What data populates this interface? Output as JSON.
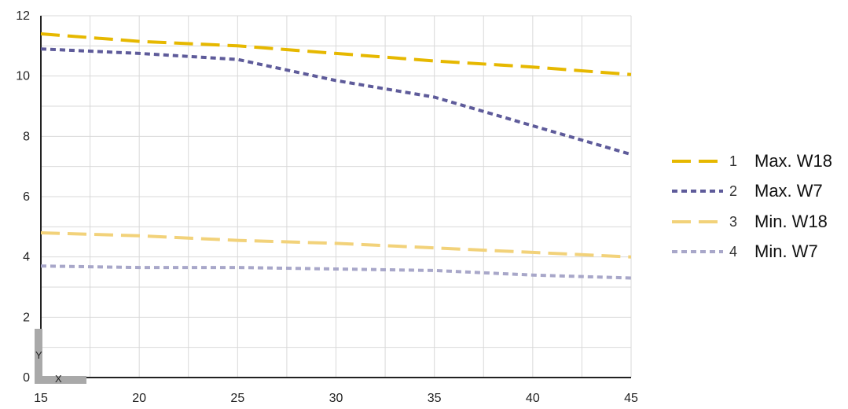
{
  "chart_data": {
    "type": "line",
    "title": "",
    "xlabel": "",
    "ylabel": "",
    "xlim": [
      15,
      45
    ],
    "ylim": [
      0,
      12
    ],
    "x_ticks": [
      15,
      20,
      25,
      30,
      35,
      40,
      45
    ],
    "y_ticks": [
      0,
      2,
      4,
      6,
      8,
      10,
      12
    ],
    "grid": true,
    "legend_position": "right",
    "axis_icon": {
      "x_letter": "X",
      "y_letter": "Y"
    },
    "series": [
      {
        "key": "1",
        "name": "Max. W18",
        "color": "#E6B800",
        "dash": "long",
        "points": [
          [
            15,
            11.4
          ],
          [
            20,
            11.15
          ],
          [
            25,
            11.0
          ],
          [
            30,
            10.75
          ],
          [
            35,
            10.5
          ],
          [
            40,
            10.3
          ],
          [
            45,
            10.05
          ]
        ]
      },
      {
        "key": "2",
        "name": "Max. W7",
        "color": "#5E5B9A",
        "dash": "short",
        "points": [
          [
            15,
            10.9
          ],
          [
            20,
            10.75
          ],
          [
            25,
            10.55
          ],
          [
            30,
            9.85
          ],
          [
            35,
            9.3
          ],
          [
            40,
            8.35
          ],
          [
            45,
            7.4
          ]
        ]
      },
      {
        "key": "3",
        "name": "Min. W18",
        "color": "#F2D27A",
        "dash": "long",
        "points": [
          [
            15,
            4.8
          ],
          [
            20,
            4.7
          ],
          [
            25,
            4.55
          ],
          [
            30,
            4.45
          ],
          [
            35,
            4.3
          ],
          [
            40,
            4.15
          ],
          [
            45,
            4.0
          ]
        ]
      },
      {
        "key": "4",
        "name": "Min. W7",
        "color": "#A8A7C9",
        "dash": "short",
        "points": [
          [
            15,
            3.7
          ],
          [
            20,
            3.65
          ],
          [
            25,
            3.65
          ],
          [
            30,
            3.6
          ],
          [
            35,
            3.55
          ],
          [
            40,
            3.4
          ],
          [
            45,
            3.3
          ]
        ]
      }
    ]
  }
}
